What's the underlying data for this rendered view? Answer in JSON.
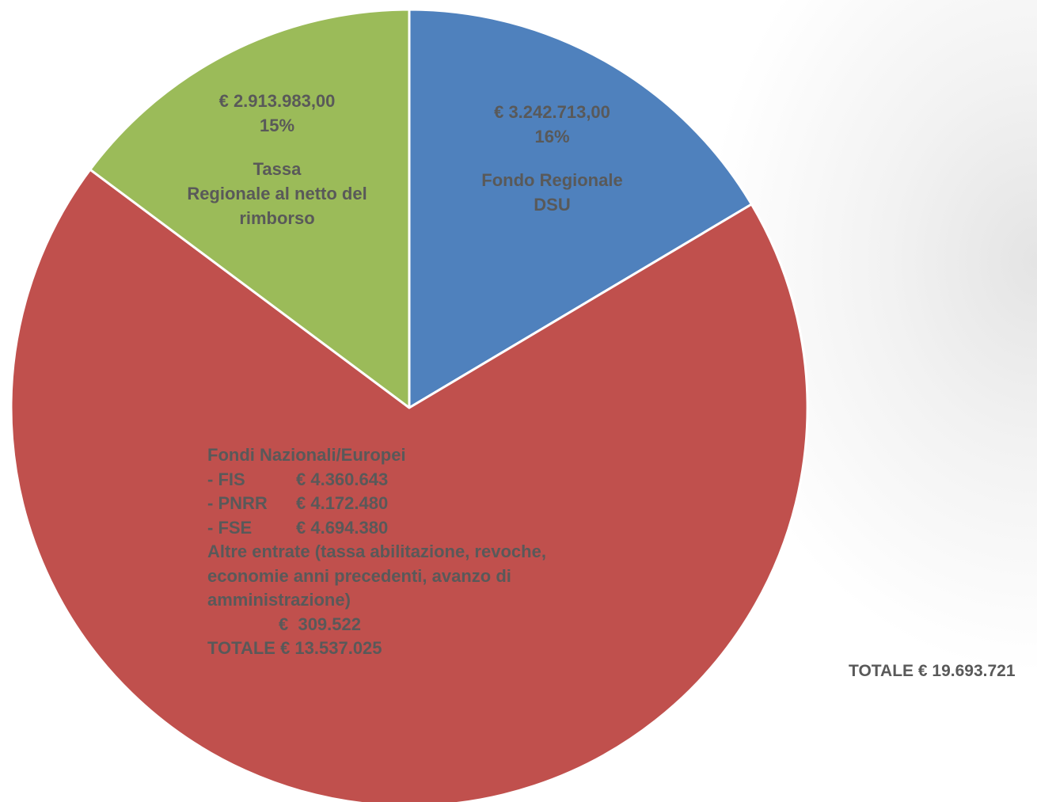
{
  "chart_data": {
    "type": "pie",
    "slices": [
      {
        "value": 3242713,
        "color": "#4F81BD",
        "amount_label": "€ 3.242.713,00",
        "percent_label": "16%",
        "name_lines": [
          "Fondo Regionale",
          "DSU"
        ]
      },
      {
        "value": 13537025,
        "color": "#C0504D"
      },
      {
        "value": 2913983,
        "color": "#9BBB59",
        "amount_label": "€ 2.913.983,00",
        "percent_label": "15%",
        "name_lines": [
          "Tassa",
          "Regionale al netto del",
          "rimborso"
        ]
      }
    ],
    "start_angle_deg": 0,
    "direction": "clockwise"
  },
  "fondi_label": {
    "title": "Fondi Nazionali/Europei",
    "items": [
      {
        "code": "- FIS",
        "amount": "€ 4.360.643"
      },
      {
        "code": "- PNRR",
        "amount": "€ 4.172.480"
      },
      {
        "code": "- FSE",
        "amount": "€ 4.694.380"
      }
    ],
    "altre_lines": [
      "Altre entrate (tassa abilitazione, revoche,",
      "economie anni precedenti, avanzo di",
      "amministrazione)"
    ],
    "altre_amount": "€  309.522",
    "total": "TOTALE € 13.537.025"
  },
  "grand_total": "TOTALE  € 19.693.721",
  "colors": {
    "label_text": "#595959",
    "slice_border": "#ffffff"
  }
}
